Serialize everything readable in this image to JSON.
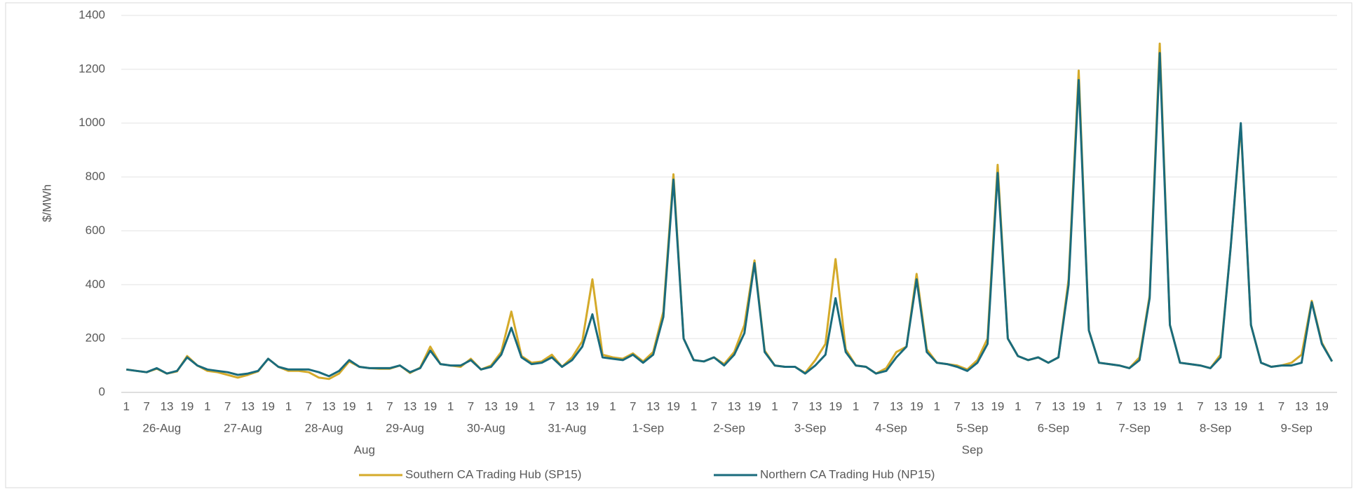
{
  "chart_data": {
    "type": "line",
    "y_label": "$/MWh",
    "categories": [
      "1",
      null,
      "7",
      null,
      "13",
      null,
      "19",
      null,
      "1",
      null,
      "7",
      null,
      "13",
      null,
      "19",
      null,
      "1",
      null,
      "7",
      null,
      "13",
      null,
      "19",
      null,
      "1",
      null,
      "7",
      null,
      "13",
      null,
      "19",
      null,
      "1",
      null,
      "7",
      null,
      "13",
      null,
      "19",
      null,
      "1",
      null,
      "7",
      null,
      "13",
      null,
      "19",
      null,
      "1",
      null,
      "7",
      null,
      "13",
      null,
      "19",
      null,
      "1",
      null,
      "7",
      null,
      "13",
      null,
      "19",
      null,
      "1",
      null,
      "7",
      null,
      "13",
      null,
      "19",
      null,
      "1",
      null,
      "7",
      null,
      "13",
      null,
      "19",
      null,
      "1",
      null,
      "7",
      null,
      "13",
      null,
      "19",
      null,
      "1",
      null,
      "7",
      null,
      "13",
      null,
      "19",
      null,
      "1",
      null,
      "7",
      null,
      "13",
      null,
      "19",
      null,
      "1",
      null,
      "7",
      null,
      "13",
      null,
      "19",
      null,
      "1",
      null,
      "7",
      null,
      "13",
      null,
      "19",
      null
    ],
    "days": [
      "26-Aug",
      "27-Aug",
      "28-Aug",
      "29-Aug",
      "30-Aug",
      "31-Aug",
      "1-Sep",
      "2-Sep",
      "3-Sep",
      "4-Sep",
      "5-Sep",
      "6-Sep",
      "7-Sep",
      "8-Sep",
      "9-Sep"
    ],
    "months": [
      "Aug",
      "Sep"
    ],
    "series": [
      {
        "name": "Southern CA Trading Hub (SP15)",
        "color": "#d4aa2a",
        "values": [
          85,
          80,
          75,
          88,
          70,
          78,
          135,
          100,
          80,
          75,
          65,
          55,
          65,
          78,
          125,
          95,
          80,
          80,
          75,
          55,
          50,
          70,
          115,
          95,
          90,
          88,
          88,
          100,
          72,
          92,
          170,
          105,
          100,
          95,
          125,
          85,
          100,
          150,
          300,
          135,
          110,
          115,
          140,
          95,
          130,
          190,
          420,
          140,
          130,
          125,
          145,
          115,
          150,
          300,
          810,
          200,
          120,
          115,
          130,
          105,
          150,
          250,
          490,
          155,
          100,
          95,
          95,
          72,
          120,
          180,
          495,
          160,
          100,
          95,
          70,
          90,
          150,
          170,
          440,
          160,
          110,
          105,
          100,
          85,
          120,
          200,
          845,
          200,
          135,
          120,
          130,
          110,
          130,
          420,
          1195,
          230,
          110,
          105,
          100,
          90,
          130,
          360,
          1295,
          250,
          110,
          105,
          100,
          90,
          140,
          540,
          990,
          250,
          110,
          95,
          100,
          110,
          140,
          340,
          185,
          115
        ]
      },
      {
        "name": "Northern CA Trading Hub (NP15)",
        "color": "#1a6b7c",
        "values": [
          85,
          80,
          75,
          90,
          70,
          80,
          130,
          100,
          85,
          80,
          75,
          65,
          70,
          80,
          125,
          95,
          85,
          85,
          85,
          75,
          60,
          80,
          120,
          95,
          90,
          90,
          90,
          100,
          75,
          90,
          155,
          105,
          100,
          100,
          120,
          85,
          95,
          140,
          240,
          130,
          105,
          110,
          130,
          95,
          120,
          170,
          290,
          130,
          125,
          120,
          140,
          110,
          140,
          280,
          790,
          200,
          120,
          115,
          130,
          100,
          140,
          220,
          480,
          150,
          100,
          95,
          95,
          70,
          100,
          140,
          350,
          150,
          100,
          95,
          70,
          80,
          130,
          170,
          420,
          150,
          110,
          105,
          95,
          80,
          110,
          180,
          815,
          200,
          135,
          120,
          130,
          110,
          130,
          400,
          1160,
          230,
          110,
          105,
          100,
          90,
          120,
          350,
          1260,
          250,
          110,
          105,
          100,
          90,
          130,
          540,
          1000,
          250,
          110,
          95,
          100,
          100,
          110,
          335,
          180,
          115
        ]
      }
    ],
    "ylim": [
      0,
      1400
    ],
    "yticks": [
      0,
      200,
      400,
      600,
      800,
      1000,
      1200,
      1400
    ],
    "grid": true,
    "legend": "bottom"
  }
}
